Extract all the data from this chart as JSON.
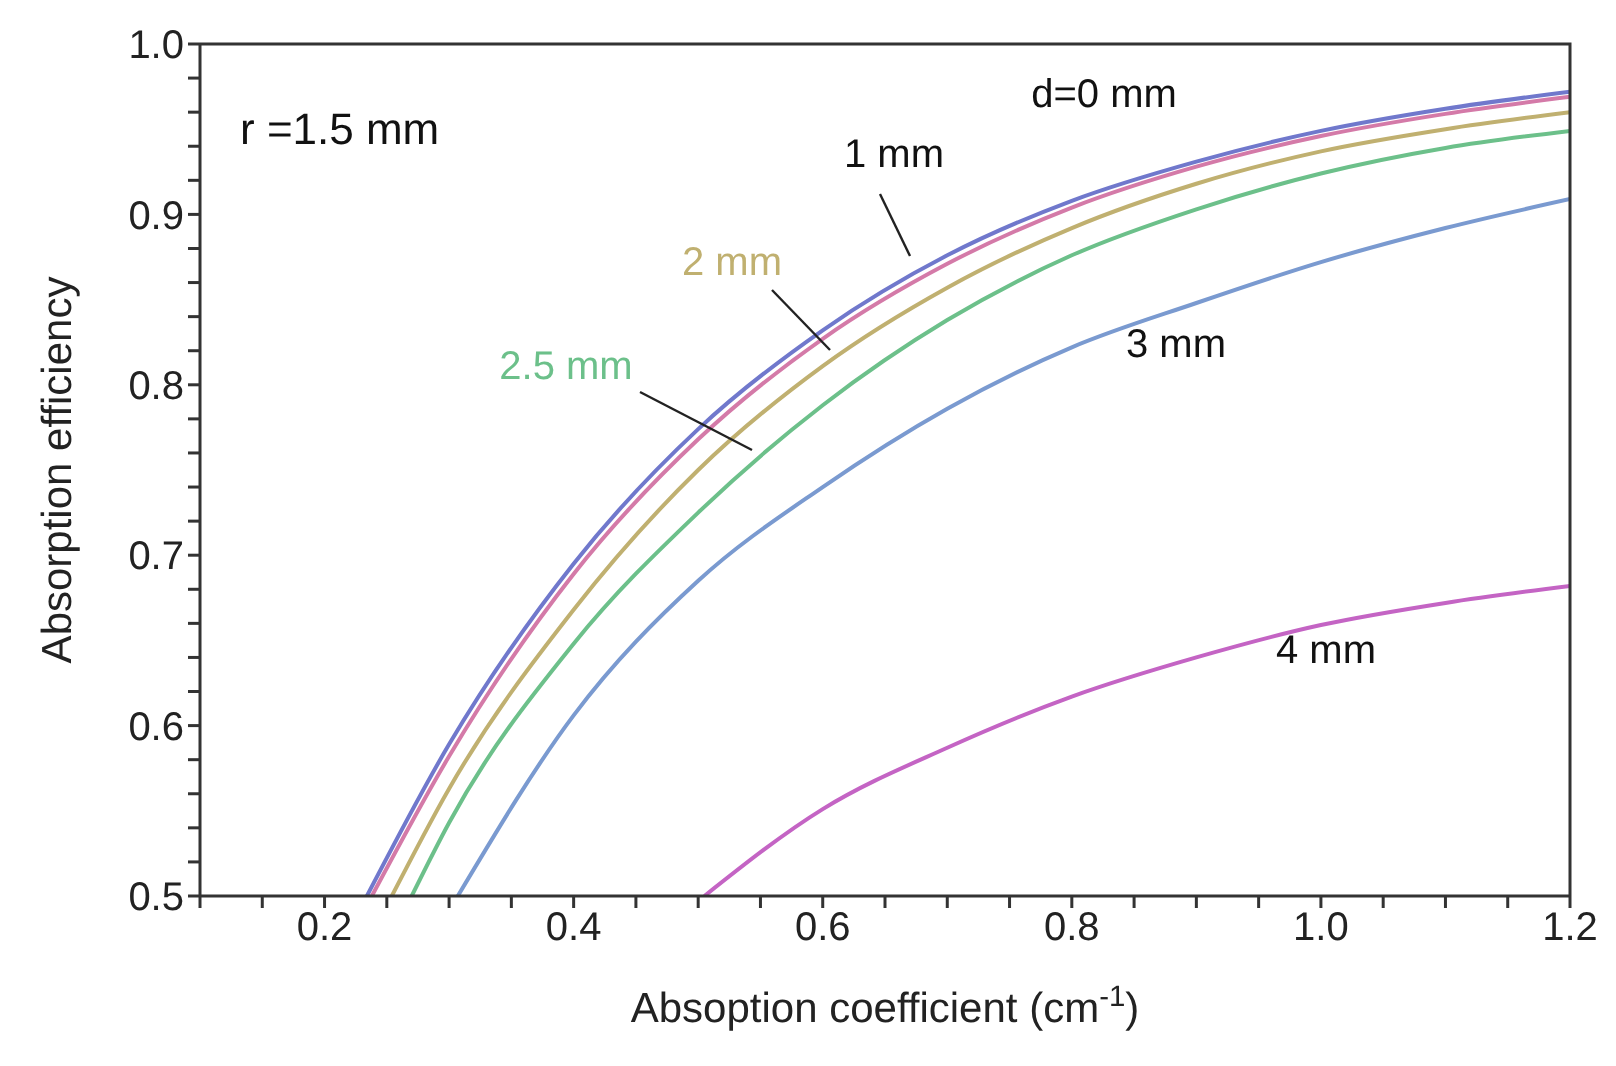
{
  "chart_data": {
    "type": "line",
    "xlabel": "Absoption coefficient (cm$^{-1}$)",
    "ylabel": "Absorption efficiency",
    "annotations": [
      "r =1.5 mm"
    ],
    "xlim": [
      0.1,
      1.2
    ],
    "ylim": [
      0.5,
      1.0
    ],
    "xticks": [
      {
        "value": 0.1,
        "label": null
      },
      {
        "value": 0.15,
        "label": null
      },
      0.2,
      {
        "value": 0.25,
        "label": null
      },
      {
        "value": 0.3,
        "label": null
      },
      {
        "value": 0.35,
        "label": null
      },
      0.4,
      {
        "value": 0.45,
        "label": null
      },
      {
        "value": 0.5,
        "label": null
      },
      {
        "value": 0.55,
        "label": null
      },
      0.6,
      {
        "value": 0.65,
        "label": null
      },
      {
        "value": 0.7,
        "label": null
      },
      {
        "value": 0.75,
        "label": null
      },
      0.8,
      {
        "value": 0.85,
        "label": null
      },
      {
        "value": 0.9,
        "label": null
      },
      {
        "value": 0.95,
        "label": null
      },
      {
        "value": 1.0,
        "label": "1.0"
      },
      {
        "value": 1.05,
        "label": null
      },
      {
        "value": 1.1,
        "label": null
      },
      {
        "value": 1.15,
        "label": null
      },
      1.2
    ],
    "yticks": [
      0.5,
      {
        "value": 0.52,
        "label": null
      },
      {
        "value": 0.54,
        "label": null
      },
      {
        "value": 0.56,
        "label": null
      },
      {
        "value": 0.58,
        "label": null
      },
      0.6,
      {
        "value": 0.62,
        "label": null
      },
      {
        "value": 0.64,
        "label": null
      },
      {
        "value": 0.66,
        "label": null
      },
      {
        "value": 0.68,
        "label": null
      },
      0.7,
      {
        "value": 0.72,
        "label": null
      },
      {
        "value": 0.74,
        "label": null
      },
      {
        "value": 0.76,
        "label": null
      },
      {
        "value": 0.78,
        "label": null
      },
      0.8,
      {
        "value": 0.82,
        "label": null
      },
      {
        "value": 0.84,
        "label": null
      },
      {
        "value": 0.86,
        "label": null
      },
      {
        "value": 0.88,
        "label": null
      },
      0.9,
      {
        "value": 0.92,
        "label": null
      },
      {
        "value": 0.94,
        "label": null
      },
      {
        "value": 0.96,
        "label": null
      },
      {
        "value": 0.98,
        "label": null
      },
      {
        "value": 1.0,
        "label": "1.0"
      }
    ],
    "marker": "none",
    "line_style": "solid",
    "series": [
      {
        "name": "d=0 mm",
        "color": "#7078cc",
        "x": [
          0.234,
          0.3,
          0.4,
          0.5,
          0.6,
          0.7,
          0.8,
          0.9,
          1.0,
          1.1,
          1.2
        ],
        "values": [
          0.5,
          0.589,
          0.695,
          0.774,
          0.832,
          0.876,
          0.908,
          0.931,
          0.949,
          0.962,
          0.972
        ]
      },
      {
        "name": "1 mm",
        "color": "#d47aa8",
        "x": [
          0.238,
          0.3,
          0.4,
          0.5,
          0.6,
          0.7,
          0.8,
          0.9,
          1.0,
          1.1,
          1.2
        ],
        "values": [
          0.5,
          0.582,
          0.689,
          0.768,
          0.827,
          0.871,
          0.904,
          0.928,
          0.946,
          0.959,
          0.969
        ]
      },
      {
        "name": "2 mm",
        "color": "#c0b070",
        "x": [
          0.254,
          0.3,
          0.4,
          0.5,
          0.6,
          0.7,
          0.8,
          0.9,
          1.0,
          1.1,
          1.2
        ],
        "values": [
          0.5,
          0.563,
          0.668,
          0.75,
          0.811,
          0.857,
          0.892,
          0.918,
          0.937,
          0.95,
          0.96
        ]
      },
      {
        "name": "2.5 mm",
        "color": "#6cc08a",
        "x": [
          0.27,
          0.3,
          0.4,
          0.5,
          0.6,
          0.7,
          0.8,
          0.9,
          1.0,
          1.1,
          1.2
        ],
        "values": [
          0.5,
          0.543,
          0.648,
          0.725,
          0.788,
          0.838,
          0.876,
          0.903,
          0.924,
          0.939,
          0.949
        ]
      },
      {
        "name": "3 mm",
        "color": "#7a9ad0",
        "x": [
          0.307,
          0.4,
          0.5,
          0.6,
          0.7,
          0.8,
          0.9,
          1.0,
          1.1,
          1.2
        ],
        "values": [
          0.5,
          0.606,
          0.685,
          0.74,
          0.786,
          0.822,
          0.848,
          0.872,
          0.892,
          0.909
        ]
      },
      {
        "name": "4 mm",
        "color": "#c464c4",
        "x": [
          0.505,
          0.6,
          0.7,
          0.8,
          0.9,
          1.0,
          1.1,
          1.2
        ],
        "values": [
          0.5,
          0.551,
          0.587,
          0.617,
          0.64,
          0.659,
          0.672,
          0.682
        ]
      }
    ]
  }
}
